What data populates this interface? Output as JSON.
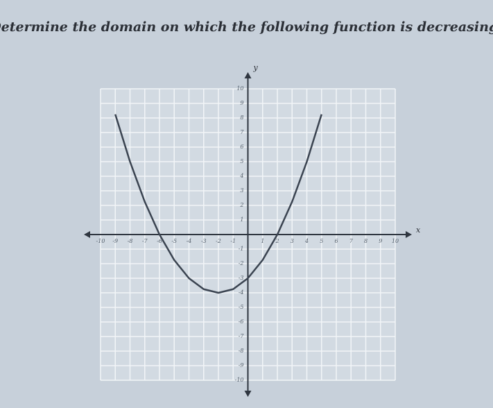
{
  "chart_data": {
    "type": "line",
    "title": "Determine the domain on which the following function is decreasing.",
    "x_label": "x",
    "y_label": "y",
    "x": [
      -9,
      -8,
      -7,
      -6,
      -5,
      -4,
      -3,
      -2,
      -1,
      0,
      1,
      2,
      3,
      4,
      5
    ],
    "series": [
      {
        "color": "#3a4350",
        "values": [
          8.25,
          5,
          2.25,
          0,
          -1.75,
          -3,
          -3.75,
          -4,
          -3.75,
          -3,
          -1.75,
          0,
          2.25,
          5,
          8.25
        ]
      }
    ],
    "xlim": [
      -10,
      10
    ],
    "ylim": [
      -10,
      10
    ],
    "xticks": [
      -10,
      -9,
      -8,
      -7,
      -6,
      -5,
      -4,
      -3,
      -2,
      -1,
      1,
      2,
      3,
      4,
      5,
      6,
      7,
      8,
      9,
      10
    ],
    "yticks": [
      -10,
      -9,
      -8,
      -7,
      -6,
      -5,
      -4,
      -3,
      -2,
      -1,
      1,
      2,
      3,
      4,
      5,
      6,
      7,
      8,
      9,
      10
    ],
    "grid": true
  }
}
